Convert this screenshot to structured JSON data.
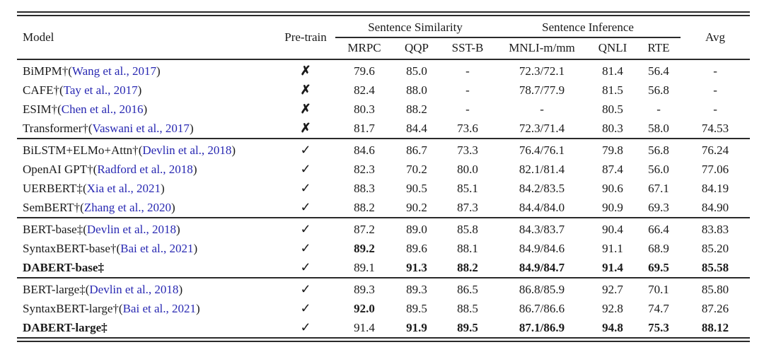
{
  "colors": {
    "citation_blue": "#2828b2",
    "text": "#1a1a1a",
    "rule": "#2a2a2a",
    "background": "#ffffff"
  },
  "icons": {
    "check": "✓",
    "cross": "✗"
  },
  "table": {
    "header": {
      "model": "Model",
      "pretrain": "Pre-train",
      "group_similarity": "Sentence Similarity",
      "group_inference": "Sentence Inference",
      "avg": "Avg",
      "subcols": [
        "MRPC",
        "QQP",
        "SST-B",
        "MNLI-m/mm",
        "QNLI",
        "RTE"
      ]
    },
    "column_keys": [
      "mrpc",
      "qqp",
      "sstb",
      "mnli",
      "qnli",
      "rte",
      "avg"
    ],
    "groups": [
      {
        "rows": [
          {
            "name": "BiMPM†",
            "citation": "Wang et al., 2017",
            "bold_name": false,
            "pretrain": "cross",
            "values": [
              "79.6",
              "85.0",
              "-",
              "72.3/72.1",
              "81.4",
              "56.4",
              "-"
            ],
            "bold_cols": []
          },
          {
            "name": "CAFE†",
            "citation": "Tay et al., 2017",
            "bold_name": false,
            "pretrain": "cross",
            "values": [
              "82.4",
              "88.0",
              "-",
              "78.7/77.9",
              "81.5",
              "56.8",
              "-"
            ],
            "bold_cols": []
          },
          {
            "name": "ESIM†",
            "citation": "Chen et al., 2016",
            "bold_name": false,
            "pretrain": "cross",
            "values": [
              "80.3",
              "88.2",
              "-",
              "-",
              "80.5",
              "-",
              "-"
            ],
            "bold_cols": []
          },
          {
            "name": "Transformer†",
            "citation": "Vaswani et al., 2017",
            "bold_name": false,
            "pretrain": "cross",
            "values": [
              "81.7",
              "84.4",
              "73.6",
              "72.3/71.4",
              "80.3",
              "58.0",
              "74.53"
            ],
            "bold_cols": []
          }
        ]
      },
      {
        "rows": [
          {
            "name": "BiLSTM+ELMo+Attn†",
            "citation": "Devlin et al., 2018",
            "bold_name": false,
            "pretrain": "check",
            "values": [
              "84.6",
              "86.7",
              "73.3",
              "76.4/76.1",
              "79.8",
              "56.8",
              "76.24"
            ],
            "bold_cols": []
          },
          {
            "name": "OpenAI GPT†",
            "citation": "Radford et al., 2018",
            "bold_name": false,
            "pretrain": "check",
            "values": [
              "82.3",
              "70.2",
              "80.0",
              "82.1/81.4",
              "87.4",
              "56.0",
              "77.06"
            ],
            "bold_cols": []
          },
          {
            "name": "UERBERT‡",
            "citation": "Xia et al., 2021",
            "bold_name": false,
            "pretrain": "check",
            "values": [
              "88.3",
              "90.5",
              "85.1",
              "84.2/83.5",
              "90.6",
              "67.1",
              "84.19"
            ],
            "bold_cols": []
          },
          {
            "name": "SemBERT†",
            "citation": "Zhang et al., 2020",
            "bold_name": false,
            "pretrain": "check",
            "values": [
              "88.2",
              "90.2",
              "87.3",
              "84.4/84.0",
              "90.9",
              "69.3",
              "84.90"
            ],
            "bold_cols": []
          }
        ]
      },
      {
        "rows": [
          {
            "name": "BERT-base‡",
            "citation": "Devlin et al., 2018",
            "bold_name": false,
            "pretrain": "check",
            "values": [
              "87.2",
              "89.0",
              "85.8",
              "84.3/83.7",
              "90.4",
              "66.4",
              "83.83"
            ],
            "bold_cols": []
          },
          {
            "name": "SyntaxBERT-base†",
            "citation": "Bai et al., 2021",
            "bold_name": false,
            "pretrain": "check",
            "values": [
              "89.2",
              "89.6",
              "88.1",
              "84.9/84.6",
              "91.1",
              "68.9",
              "85.20"
            ],
            "bold_cols": [
              0
            ]
          },
          {
            "name": "DABERT-base‡",
            "citation": null,
            "bold_name": true,
            "pretrain": "check",
            "values": [
              "89.1",
              "91.3",
              "88.2",
              "84.9/84.7",
              "91.4",
              "69.5",
              "85.58"
            ],
            "bold_cols": [
              1,
              2,
              3,
              4,
              5,
              6
            ]
          }
        ]
      },
      {
        "rows": [
          {
            "name": "BERT-large‡",
            "citation": "Devlin et al., 2018",
            "bold_name": false,
            "pretrain": "check",
            "values": [
              "89.3",
              "89.3",
              "86.5",
              "86.8/85.9",
              "92.7",
              "70.1",
              "85.80"
            ],
            "bold_cols": []
          },
          {
            "name": "SyntaxBERT-large†",
            "citation": "Bai et al., 2021",
            "bold_name": false,
            "pretrain": "check",
            "values": [
              "92.0",
              "89.5",
              "88.5",
              "86.7/86.6",
              "92.8",
              "74.7",
              "87.26"
            ],
            "bold_cols": [
              0
            ]
          },
          {
            "name": "DABERT-large‡",
            "citation": null,
            "bold_name": true,
            "pretrain": "check",
            "values": [
              "91.4",
              "91.9",
              "89.5",
              "87.1/86.9",
              "94.8",
              "75.3",
              "88.12"
            ],
            "bold_cols": [
              1,
              2,
              3,
              4,
              5,
              6
            ]
          }
        ]
      }
    ]
  }
}
